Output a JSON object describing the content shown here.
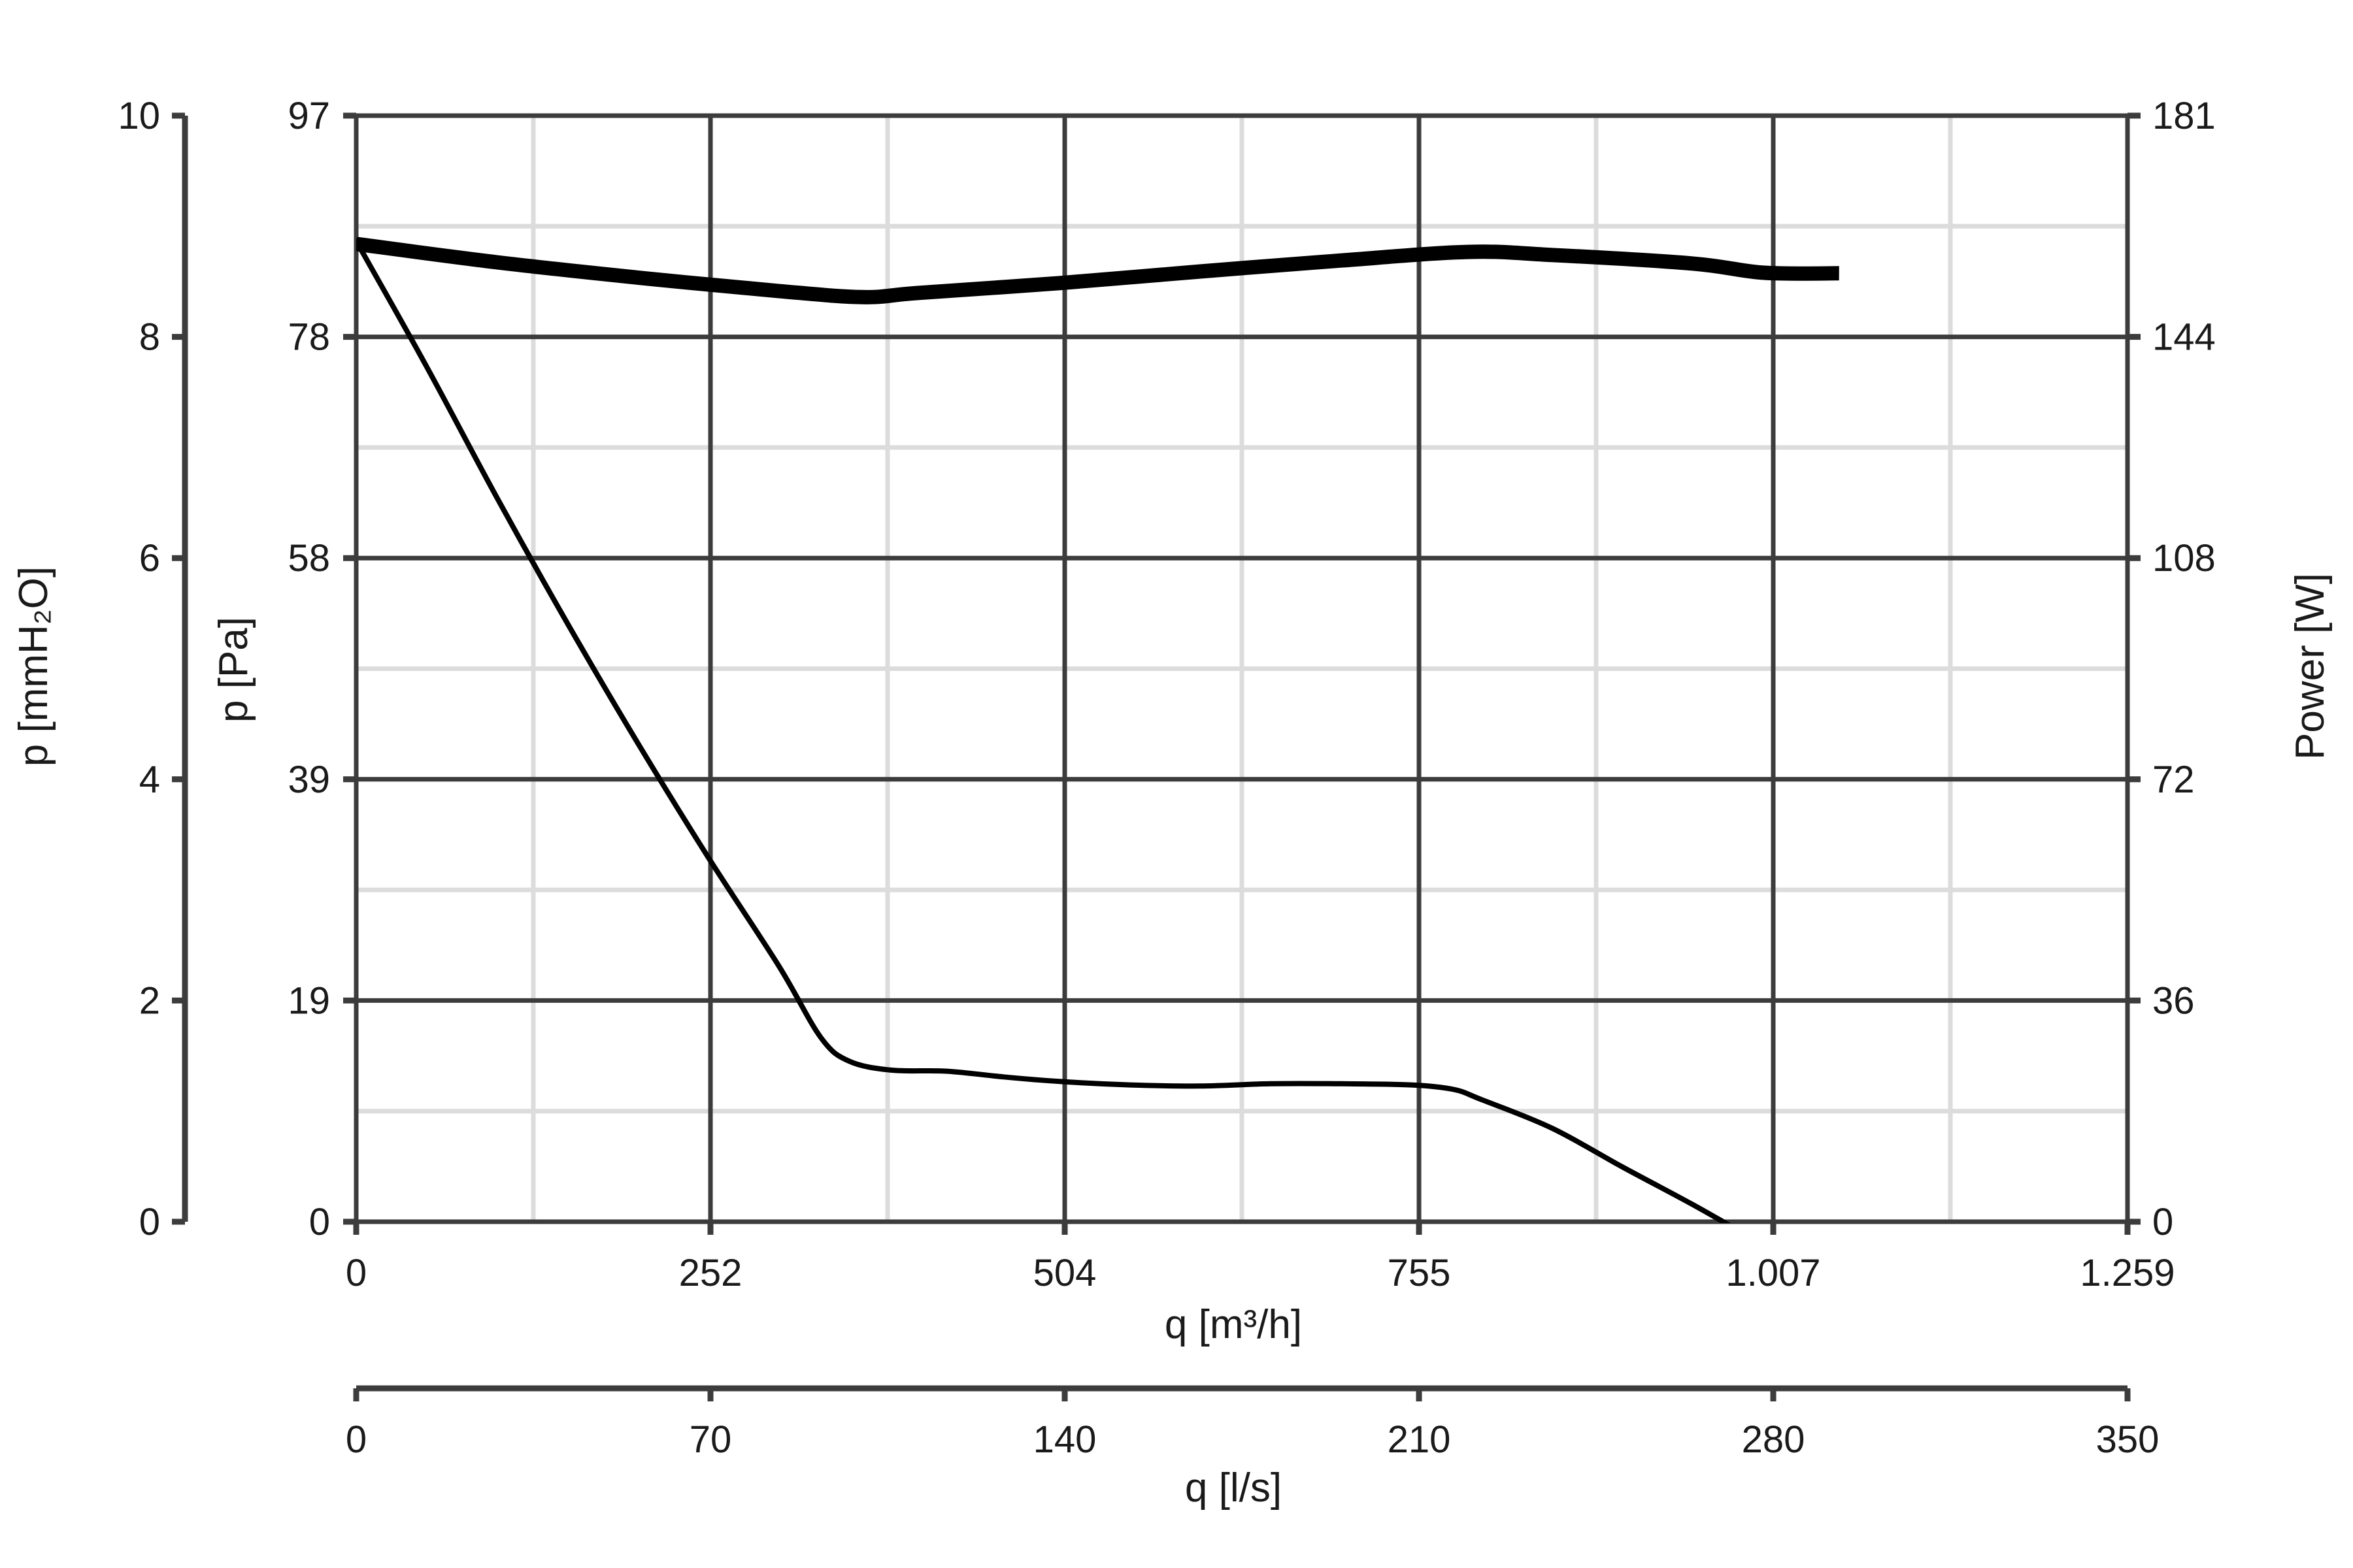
{
  "chart_data": {
    "type": "line",
    "x_axis_primary": {
      "label": "q [m³/h]",
      "range": [
        0,
        1259
      ],
      "ticks": [
        {
          "value": 0,
          "label": "0"
        },
        {
          "value": 252,
          "label": "252"
        },
        {
          "value": 504,
          "label": "504"
        },
        {
          "value": 755,
          "label": "755"
        },
        {
          "value": 1007,
          "label": "1.007"
        },
        {
          "value": 1259,
          "label": "1.259"
        }
      ]
    },
    "x_axis_secondary": {
      "label": "q [l/s]",
      "range": [
        0,
        350
      ],
      "ticks": [
        {
          "value": 0,
          "label": "0"
        },
        {
          "value": 70,
          "label": "70"
        },
        {
          "value": 140,
          "label": "140"
        },
        {
          "value": 210,
          "label": "210"
        },
        {
          "value": 280,
          "label": "280"
        },
        {
          "value": 350,
          "label": "350"
        }
      ]
    },
    "y_axis_pa": {
      "label": "p [Pa]",
      "range": [
        0,
        97
      ],
      "ticks": [
        {
          "value": 0,
          "label": "0"
        },
        {
          "value": 19,
          "label": "19"
        },
        {
          "value": 39,
          "label": "39"
        },
        {
          "value": 58,
          "label": "58"
        },
        {
          "value": 78,
          "label": "78"
        },
        {
          "value": 97,
          "label": "97"
        }
      ]
    },
    "y_axis_mmh2o": {
      "label": "p [mmH₂O]",
      "range": [
        0,
        10
      ],
      "ticks": [
        {
          "value": 0,
          "label": "0"
        },
        {
          "value": 2,
          "label": "2"
        },
        {
          "value": 4,
          "label": "4"
        },
        {
          "value": 6,
          "label": "6"
        },
        {
          "value": 8,
          "label": "8"
        },
        {
          "value": 10,
          "label": "10"
        }
      ]
    },
    "y_axis_power": {
      "label": "Power [W]",
      "range": [
        0,
        181
      ],
      "ticks": [
        {
          "value": 0,
          "label": "0"
        },
        {
          "value": 36,
          "label": "36"
        },
        {
          "value": 72,
          "label": "72"
        },
        {
          "value": 108,
          "label": "108"
        },
        {
          "value": 144,
          "label": "144"
        },
        {
          "value": 181,
          "label": "181"
        }
      ]
    },
    "grid": true,
    "series": [
      {
        "axis": "p_pa",
        "x": [
          0,
          50,
          100,
          150,
          200,
          250,
          300,
          330,
          350,
          380,
          420,
          460,
          500,
          550,
          600,
          650,
          700,
          750,
          780,
          800,
          850,
          900,
          950,
          1000,
          1030,
          1054
        ],
        "y": [
          86,
          75,
          63.5,
          52.5,
          42,
          32,
          22.5,
          16.2,
          14.1,
          13.3,
          13.2,
          12.7,
          12.3,
          12.0,
          11.9,
          12.1,
          12.1,
          12.0,
          11.6,
          10.7,
          8.2,
          4.8,
          1.5,
          -2.0,
          -4.0,
          -5.7
        ]
      },
      {
        "axis": "power",
        "x": [
          0,
          100,
          200,
          300,
          360,
          400,
          500,
          600,
          700,
          790,
          850,
          950,
          1000,
          1054
        ],
        "y": [
          160,
          157,
          154.5,
          152.3,
          151.3,
          152,
          153.6,
          155.5,
          157.3,
          158.7,
          158.2,
          156.8,
          155.3,
          155.2
        ]
      }
    ]
  }
}
